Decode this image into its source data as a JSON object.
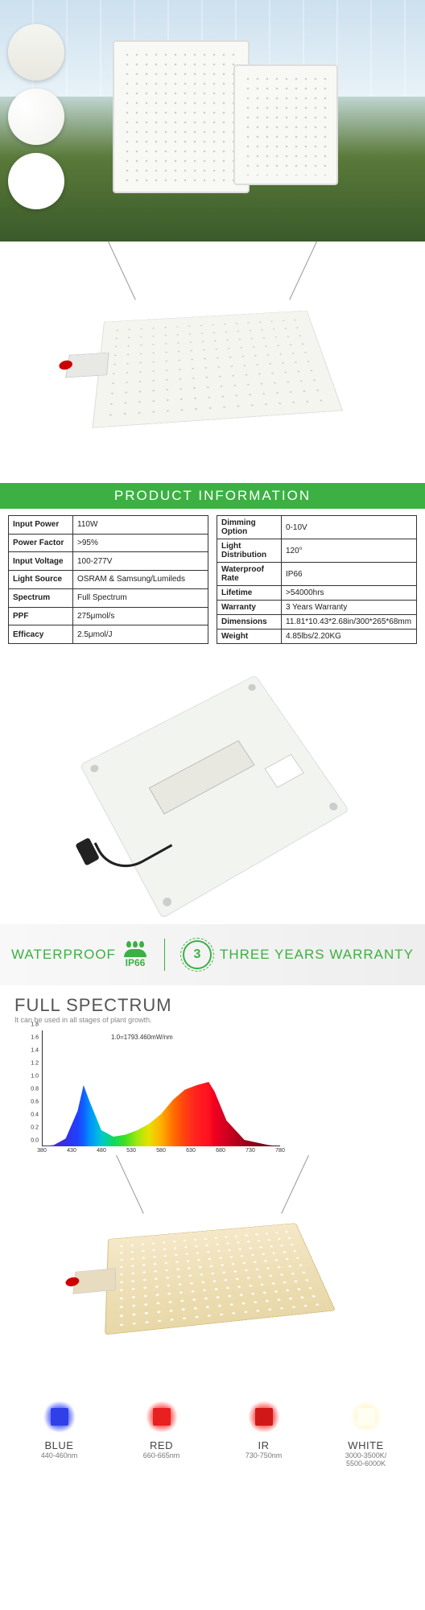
{
  "section_header": "PRODUCT INFORMATION",
  "specs_left": [
    {
      "k": "Input Power",
      "v": "110W"
    },
    {
      "k": "Power Factor",
      "v": ">95%"
    },
    {
      "k": "Input Voltage",
      "v": "100-277V"
    },
    {
      "k": "Light Source",
      "v": "OSRAM & Samsung/Lumileds"
    },
    {
      "k": "Spectrum",
      "v": "Full Spectrum"
    },
    {
      "k": "PPF",
      "v": "275μmol/s"
    },
    {
      "k": "Efficacy",
      "v": "2.5μmol/J"
    }
  ],
  "specs_right": [
    {
      "k": "Dimming Option",
      "v": "0-10V"
    },
    {
      "k": "Light Distribution",
      "v": "120°"
    },
    {
      "k": "Waterproof Rate",
      "v": "IP66"
    },
    {
      "k": "Lifetime",
      "v": ">54000hrs"
    },
    {
      "k": "Warranty",
      "v": "3 Years Warranty"
    },
    {
      "k": "Dimensions",
      "v": "11.81*10.43*2.68in/300*265*68mm"
    },
    {
      "k": "Weight",
      "v": "4.85lbs/2.20KG"
    }
  ],
  "feature_bar": {
    "waterproof_label": "WATERPROOF",
    "ip_rating": "IP66",
    "warranty_years": "3",
    "warranty_label": "THREE YEARS WARRANTY",
    "accent": "#3cb043"
  },
  "spectrum": {
    "title": "FULL SPECTRUM",
    "subtitle": "It can be used in all stages of plant growth.",
    "peak_label": "1.0=1793.460mW/nm",
    "ylim": [
      0,
      1.8
    ],
    "ytick_step": 0.2,
    "xlim": [
      380,
      780
    ],
    "xtick_step": 50,
    "series": [
      {
        "x": 380,
        "y": 0.0,
        "color": "#5a2db0"
      },
      {
        "x": 400,
        "y": 0.02,
        "color": "#4a2dd0"
      },
      {
        "x": 420,
        "y": 0.12,
        "color": "#3030e8"
      },
      {
        "x": 440,
        "y": 0.55,
        "color": "#2040ff"
      },
      {
        "x": 450,
        "y": 0.95,
        "color": "#1060ff"
      },
      {
        "x": 460,
        "y": 0.7,
        "color": "#0090ff"
      },
      {
        "x": 480,
        "y": 0.25,
        "color": "#00c8d0"
      },
      {
        "x": 500,
        "y": 0.15,
        "color": "#10d860"
      },
      {
        "x": 520,
        "y": 0.18,
        "color": "#40e020"
      },
      {
        "x": 540,
        "y": 0.25,
        "color": "#a0e810"
      },
      {
        "x": 560,
        "y": 0.35,
        "color": "#e8e000"
      },
      {
        "x": 580,
        "y": 0.5,
        "color": "#ffb000"
      },
      {
        "x": 600,
        "y": 0.72,
        "color": "#ff7000"
      },
      {
        "x": 620,
        "y": 0.88,
        "color": "#ff4010"
      },
      {
        "x": 640,
        "y": 0.95,
        "color": "#ff2020"
      },
      {
        "x": 660,
        "y": 1.0,
        "color": "#ff1020"
      },
      {
        "x": 670,
        "y": 0.85,
        "color": "#f00020"
      },
      {
        "x": 690,
        "y": 0.4,
        "color": "#d00020"
      },
      {
        "x": 720,
        "y": 0.1,
        "color": "#a00018"
      },
      {
        "x": 760,
        "y": 0.02,
        "color": "#700010"
      },
      {
        "x": 780,
        "y": 0.0,
        "color": "#500008"
      }
    ]
  },
  "colors": [
    {
      "name": "BLUE",
      "wave": "440-460nm",
      "glow": "#5a6aff",
      "core": "#3040e8"
    },
    {
      "name": "RED",
      "wave": "660-665nm",
      "glow": "#ff5a5a",
      "core": "#e82020"
    },
    {
      "name": "IR",
      "wave": "730-750nm",
      "glow": "#ff5a5a",
      "core": "#d01818"
    },
    {
      "name": "WHITE",
      "wave": "3000-3500K/\n5500-6000K",
      "glow": "#fff8d0",
      "core": "#fffef0"
    }
  ]
}
